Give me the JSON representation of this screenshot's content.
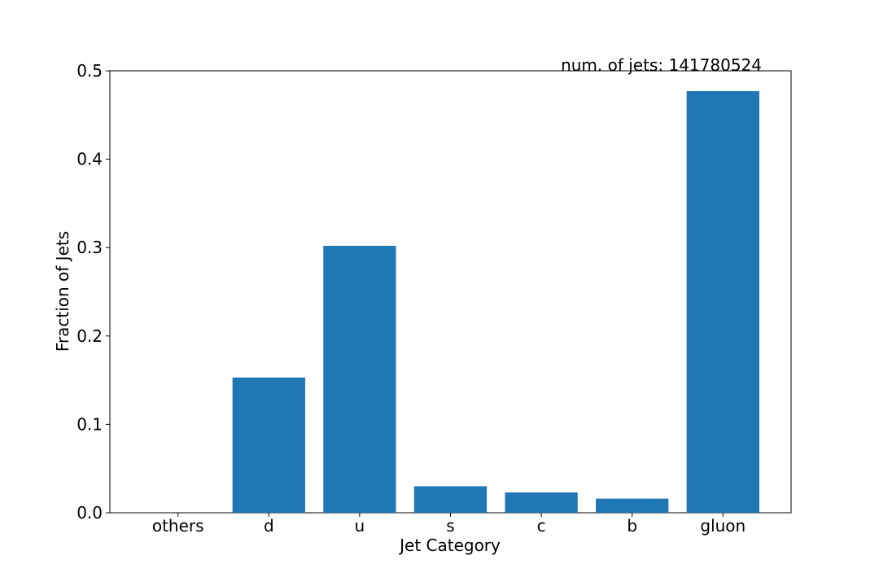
{
  "chart_data": {
    "type": "bar",
    "title": "",
    "xlabel": "Jet Category",
    "ylabel": "Fraction of Jets",
    "categories": [
      "others",
      "d",
      "u",
      "s",
      "c",
      "b",
      "gluon"
    ],
    "values": [
      0.0,
      0.153,
      0.302,
      0.03,
      0.023,
      0.016,
      0.477
    ],
    "ylim": [
      0,
      0.5
    ],
    "yticks": [
      0.0,
      0.1,
      0.2,
      0.3,
      0.4,
      0.5
    ],
    "ytick_labels": [
      "0.0",
      "0.1",
      "0.2",
      "0.3",
      "0.4",
      "0.5"
    ],
    "grid": false,
    "annotation": "num. of jets: 141780524",
    "bar_color": "#1f77b4"
  }
}
